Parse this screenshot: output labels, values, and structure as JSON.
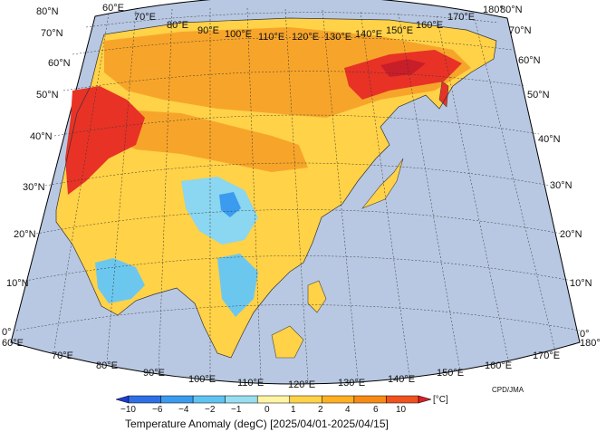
{
  "map": {
    "lat_labels": [
      "80°N",
      "70°N",
      "60°N",
      "50°N",
      "40°N",
      "30°N",
      "20°N",
      "10°N",
      "0°"
    ],
    "lon_labels_top": [
      "60°E",
      "70°E",
      "80°E",
      "90°E",
      "100°E",
      "110°E",
      "120°E",
      "130°E",
      "140°E",
      "150°E",
      "160°E",
      "170°E",
      "180°"
    ],
    "lon_labels_bottom": [
      "60°E",
      "70°E",
      "80°E",
      "90°E",
      "100°E",
      "110°E",
      "120°E",
      "130°E",
      "140°E",
      "150°E",
      "160°E",
      "170°E",
      "180°"
    ],
    "credit": "CPD/JMA"
  },
  "colorbar": {
    "ticks": [
      "−10",
      "−6",
      "−4",
      "−2",
      "−1",
      "0",
      "1",
      "2",
      "4",
      "6",
      "10"
    ],
    "unit": "[°C]",
    "colors": [
      "#1e3ccf",
      "#2f6fe6",
      "#3a9bef",
      "#5fc3f2",
      "#97def0",
      "#fff4a3",
      "#ffd248",
      "#ffb022",
      "#f78a14",
      "#f0521f",
      "#d91f2a"
    ],
    "title": "Temperature Anomaly (degC) [2025/04/01-2025/04/15]"
  },
  "colors": {
    "ocean": "#b8c8e2",
    "frame": "#000000"
  }
}
